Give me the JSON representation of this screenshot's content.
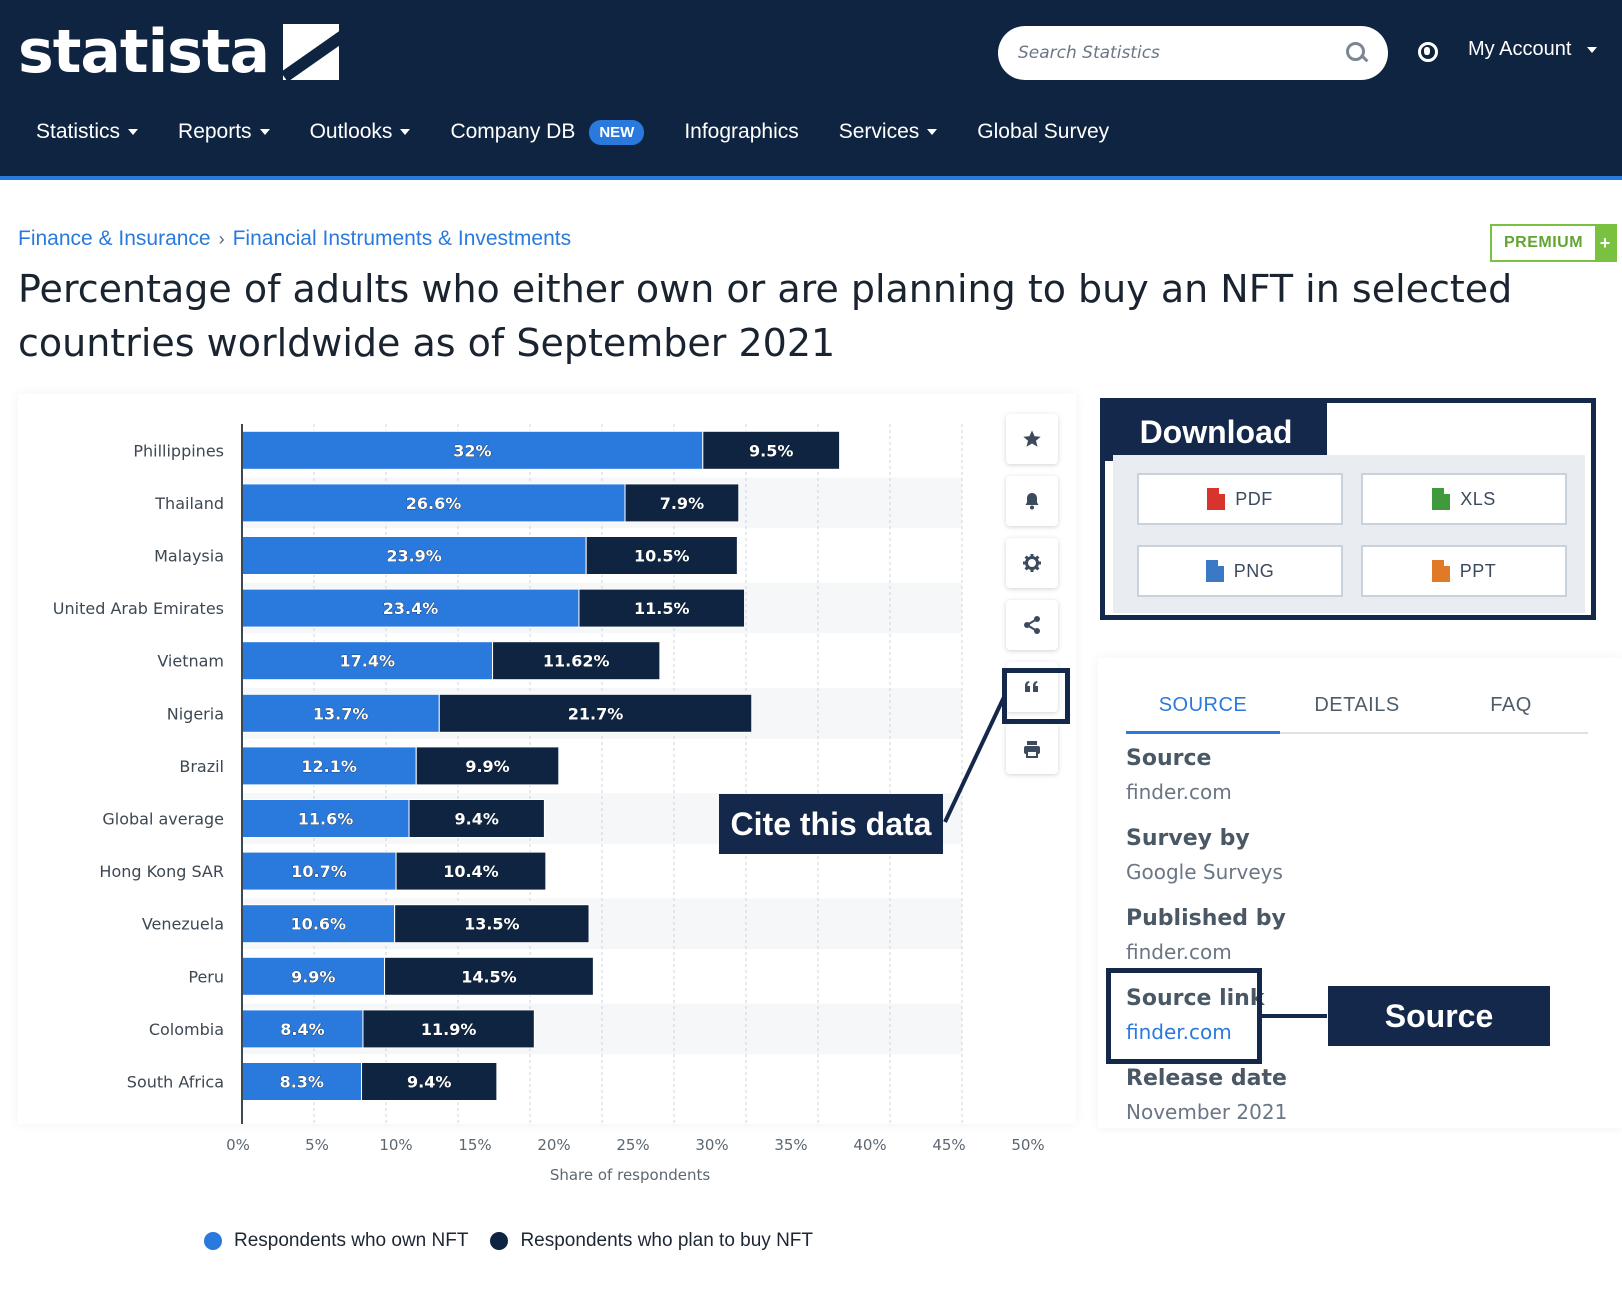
{
  "header": {
    "logo_text": "statista",
    "search_placeholder": "Search Statistics",
    "account_label": "My Account",
    "nav": [
      {
        "label": "Statistics",
        "dropdown": true
      },
      {
        "label": "Reports",
        "dropdown": true
      },
      {
        "label": "Outlooks",
        "dropdown": true
      },
      {
        "label": "Company DB",
        "dropdown": false,
        "badge": "NEW"
      },
      {
        "label": "Infographics",
        "dropdown": false
      },
      {
        "label": "Services",
        "dropdown": true
      },
      {
        "label": "Global Survey",
        "dropdown": false
      }
    ]
  },
  "breadcrumb": [
    "Finance & Insurance",
    "Financial Instruments & Investments"
  ],
  "premium_label": "PREMIUM",
  "page_title": "Percentage of adults who either own or are planning to buy an NFT in selected countries worldwide as of September 2021",
  "toolbar": {
    "icons": [
      "star-icon",
      "bell-icon",
      "gear-icon",
      "share-icon",
      "quote-icon",
      "print-icon"
    ]
  },
  "chart_data": {
    "type": "bar",
    "orientation": "horizontal",
    "stacked": true,
    "categories": [
      "Phillippines",
      "Thailand",
      "Malaysia",
      "United Arab Emirates",
      "Vietnam",
      "Nigeria",
      "Brazil",
      "Global average",
      "Hong Kong SAR",
      "Venezuela",
      "Peru",
      "Colombia",
      "South Africa"
    ],
    "series": [
      {
        "name": "Respondents who own NFT",
        "color": "#2a7ade",
        "values": [
          32,
          26.6,
          23.9,
          23.4,
          17.4,
          13.7,
          12.1,
          11.6,
          10.7,
          10.6,
          9.9,
          8.4,
          8.3
        ],
        "labels": [
          "32%",
          "26.6%",
          "23.9%",
          "23.4%",
          "17.4%",
          "13.7%",
          "12.1%",
          "11.6%",
          "10.7%",
          "10.6%",
          "9.9%",
          "8.4%",
          "8.3%"
        ]
      },
      {
        "name": "Respondents who plan to buy NFT",
        "color": "#0f2440",
        "values": [
          9.5,
          7.9,
          10.5,
          11.5,
          11.62,
          21.7,
          9.9,
          9.4,
          10.4,
          13.5,
          14.5,
          11.9,
          9.4
        ],
        "labels": [
          "9.5%",
          "7.9%",
          "10.5%",
          "11.5%",
          "11.62%",
          "21.7%",
          "9.9%",
          "9.4%",
          "10.4%",
          "13.5%",
          "14.5%",
          "11.9%",
          "9.4%"
        ]
      }
    ],
    "xlabel": "Share of respondents",
    "xlim": [
      0,
      50
    ],
    "xticks": [
      "0%",
      "5%",
      "10%",
      "15%",
      "20%",
      "25%",
      "30%",
      "35%",
      "40%",
      "45%",
      "50%"
    ],
    "grid": true,
    "legend_position": "bottom"
  },
  "download": {
    "title": "Download",
    "buttons": [
      {
        "label": "PDF",
        "icon": "pdf-file-icon",
        "color": "#d9342b"
      },
      {
        "label": "XLS",
        "icon": "xls-file-icon",
        "color": "#3f9a3c"
      },
      {
        "label": "PNG",
        "icon": "png-file-icon",
        "color": "#3b78c6"
      },
      {
        "label": "PPT",
        "icon": "ppt-file-icon",
        "color": "#e07a27"
      }
    ]
  },
  "info": {
    "tabs": [
      "SOURCE",
      "DETAILS",
      "FAQ"
    ],
    "active_tab": "SOURCE",
    "rows": [
      {
        "label": "Source",
        "value": "finder.com"
      },
      {
        "label": "Survey by",
        "value": "Google Surveys"
      },
      {
        "label": "Published by",
        "value": "finder.com"
      },
      {
        "label": "Source link",
        "value": "finder.com"
      },
      {
        "label": "Release date",
        "value": "November 2021"
      }
    ]
  },
  "annotations": {
    "cite": "Cite this data",
    "source": "Source"
  }
}
